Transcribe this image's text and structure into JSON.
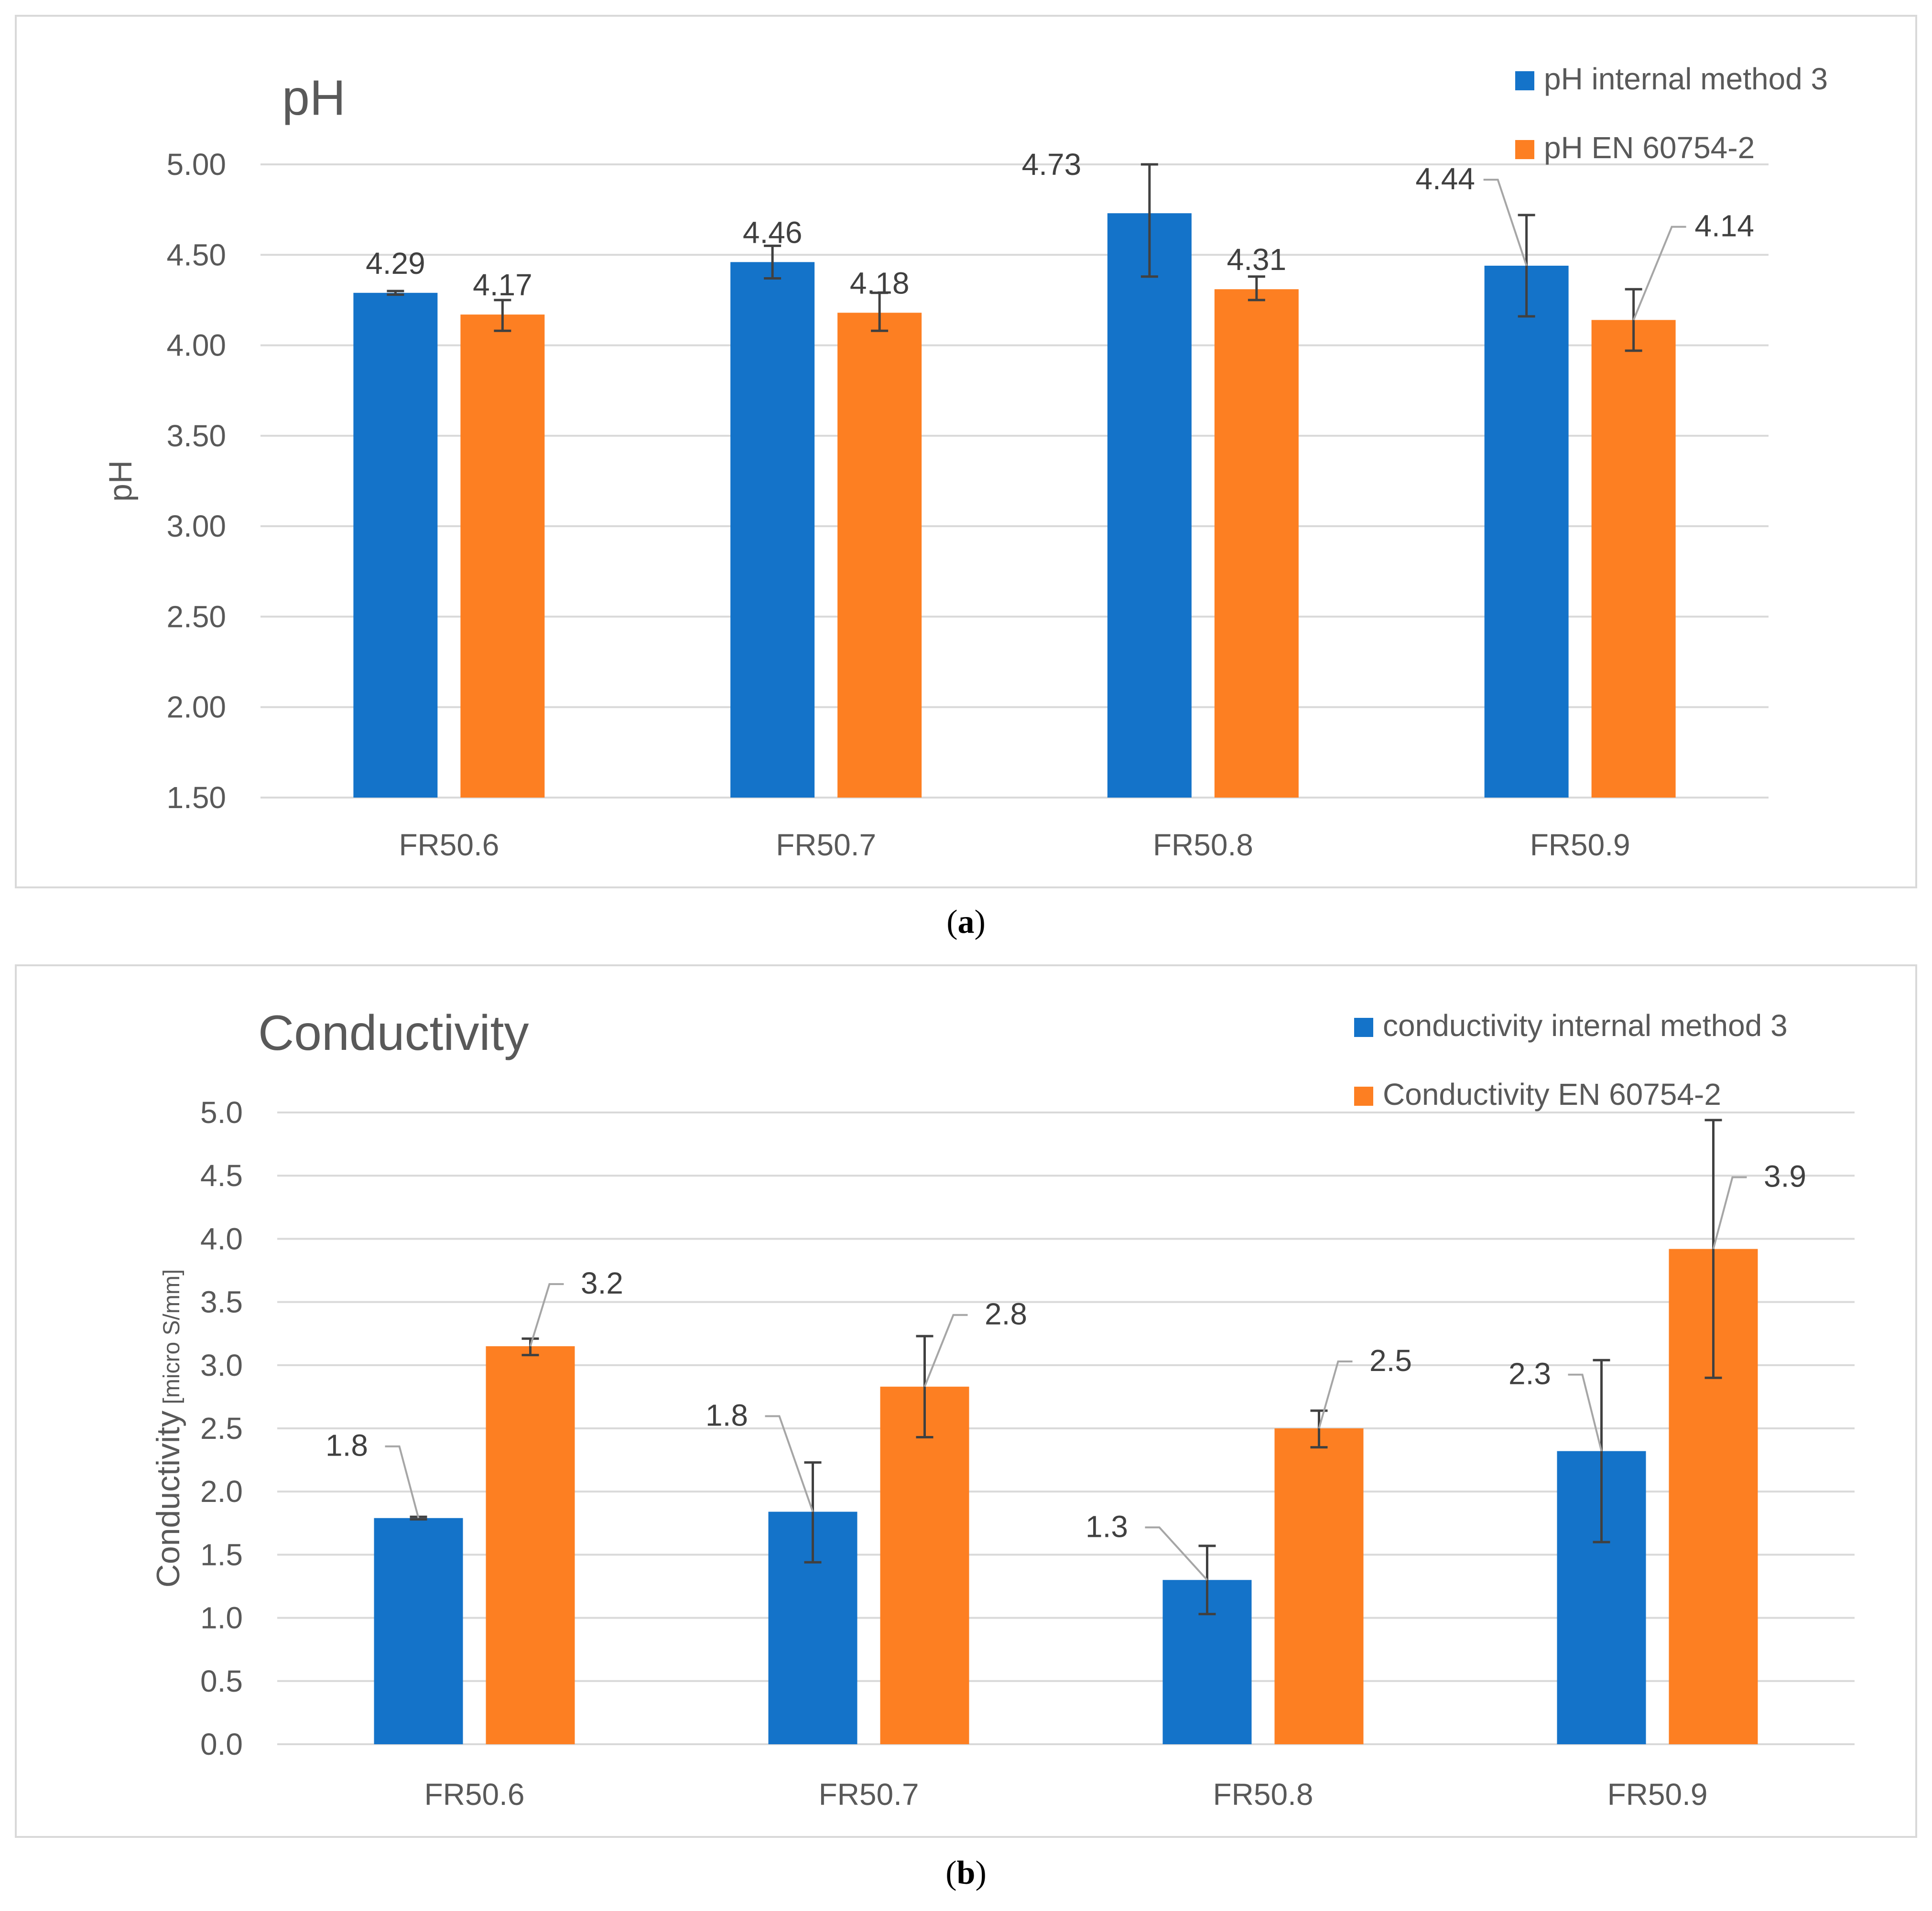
{
  "colors": {
    "series1": "#1473c9",
    "series2": "#fd7f22",
    "grid": "#d9d9d9",
    "text": "#595959",
    "error": "#404040"
  },
  "chart_data": [
    {
      "type": "bar",
      "title": "pH",
      "xlabel": "",
      "ylabel": "pH",
      "categories": [
        "FR50.6",
        "FR50.7",
        "FR50.8",
        "FR50.9"
      ],
      "ylim": [
        1.5,
        5.0
      ],
      "yticks": [
        "1.50",
        "2.00",
        "2.50",
        "3.00",
        "3.50",
        "4.00",
        "4.50",
        "5.00"
      ],
      "series": [
        {
          "name": "pH internal method 3",
          "values": [
            4.29,
            4.46,
            4.73,
            4.44
          ],
          "labels": [
            "4.29",
            "4.46",
            "4.73",
            "4.44"
          ],
          "err_low": [
            4.28,
            4.37,
            4.38,
            4.16
          ],
          "err_high": [
            4.3,
            4.55,
            5.0,
            4.72
          ]
        },
        {
          "name": "pH EN 60754-2",
          "values": [
            4.17,
            4.18,
            4.31,
            4.14
          ],
          "labels": [
            "4.17",
            "4.18",
            "4.31",
            "4.14"
          ],
          "err_low": [
            4.08,
            4.08,
            4.25,
            3.97
          ],
          "err_high": [
            4.25,
            4.29,
            4.38,
            4.31
          ]
        }
      ],
      "legend": "top-right",
      "caption_letter": "a"
    },
    {
      "type": "bar",
      "title": "Conductivity",
      "xlabel": "",
      "ylabel": "Conductivity",
      "ylabel_unit": "[micro S/mm]",
      "categories": [
        "FR50.6",
        "FR50.7",
        "FR50.8",
        "FR50.9"
      ],
      "ylim": [
        0.0,
        5.0
      ],
      "yticks": [
        "0.0",
        "0.5",
        "1.0",
        "1.5",
        "2.0",
        "2.5",
        "3.0",
        "3.5",
        "4.0",
        "4.5",
        "5.0"
      ],
      "series": [
        {
          "name": "conductivity internal method 3",
          "values": [
            1.79,
            1.84,
            1.3,
            2.32
          ],
          "labels": [
            "1.8",
            "1.8",
            "1.3",
            "2.3"
          ],
          "err_low": [
            1.78,
            1.44,
            1.03,
            1.6
          ],
          "err_high": [
            1.8,
            2.23,
            1.57,
            3.04
          ]
        },
        {
          "name": "Conductivity EN 60754-2",
          "values": [
            3.15,
            2.83,
            2.5,
            3.92
          ],
          "labels": [
            "3.2",
            "2.8",
            "2.5",
            "3.9"
          ],
          "err_low": [
            3.08,
            2.43,
            2.35,
            2.9
          ],
          "err_high": [
            3.21,
            3.23,
            2.64,
            4.94
          ]
        }
      ],
      "legend": "top-right",
      "caption_letter": "b"
    }
  ]
}
